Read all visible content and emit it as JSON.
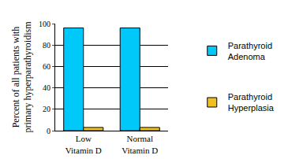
{
  "chart_data": {
    "type": "bar",
    "ylabel": "Percent of all patients with\nprimary hyperparathyroidism",
    "categories": [
      "Low\nVitamin D",
      "Normal\nVitamin D"
    ],
    "series": [
      {
        "name": "Parathyroid\nAdenoma",
        "color": "#00c8f8",
        "values": [
          96,
          96
        ]
      },
      {
        "name": "Parathyroid\nHyperplasia",
        "color": "#f0c020",
        "values": [
          3,
          3
        ]
      }
    ],
    "ylim": [
      0,
      100
    ],
    "yticks": [
      0,
      20,
      40,
      60,
      80,
      100
    ],
    "grid": true,
    "legend": "right"
  }
}
